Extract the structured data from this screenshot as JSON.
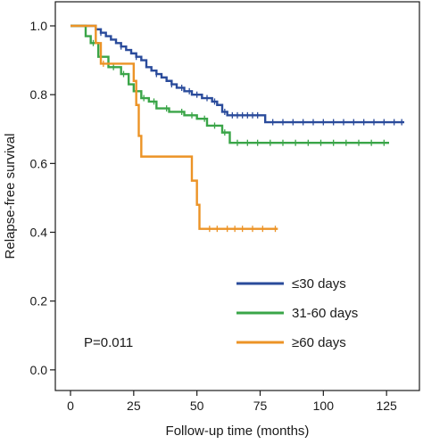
{
  "chart_data": {
    "type": "line",
    "title": "",
    "xlabel": "Follow-up time (months)",
    "ylabel": "Relapse-free survival",
    "xlim": [
      -6,
      138
    ],
    "ylim": [
      -0.06,
      1.07
    ],
    "x_ticks": [
      0,
      25,
      50,
      75,
      100,
      125
    ],
    "x_tick_labels": [
      "0",
      "25",
      "50",
      "75",
      "100",
      "125"
    ],
    "y_ticks": [
      0.0,
      0.2,
      0.4,
      0.6,
      0.8,
      1.0
    ],
    "y_tick_labels": [
      "0.0",
      "0.2",
      "0.4",
      "0.6",
      "0.8",
      "1.0"
    ],
    "grid": false,
    "legend_placement": "bottom-right",
    "annotation": "P=0.011",
    "series": [
      {
        "name": "≤30 days",
        "color": "#2a4b9b",
        "step_points": [
          [
            0,
            1.0
          ],
          [
            8,
            1.0
          ],
          [
            10,
            0.99
          ],
          [
            12,
            0.98
          ],
          [
            14,
            0.97
          ],
          [
            16,
            0.96
          ],
          [
            18,
            0.95
          ],
          [
            20,
            0.94
          ],
          [
            22,
            0.93
          ],
          [
            24,
            0.92
          ],
          [
            26,
            0.91
          ],
          [
            28,
            0.9
          ],
          [
            30,
            0.88
          ],
          [
            32,
            0.87
          ],
          [
            34,
            0.86
          ],
          [
            36,
            0.85
          ],
          [
            38,
            0.84
          ],
          [
            40,
            0.83
          ],
          [
            42,
            0.82
          ],
          [
            45,
            0.81
          ],
          [
            48,
            0.8
          ],
          [
            52,
            0.79
          ],
          [
            56,
            0.78
          ],
          [
            58,
            0.77
          ],
          [
            60,
            0.75
          ],
          [
            62,
            0.74
          ],
          [
            77,
            0.72
          ],
          [
            132,
            0.72
          ]
        ],
        "censor_x": [
          12,
          20,
          26,
          34,
          40,
          44,
          47,
          50,
          54,
          57,
          61,
          64,
          66,
          68,
          70,
          72,
          74,
          80,
          84,
          88,
          92,
          96,
          100,
          104,
          108,
          112,
          116,
          120,
          124,
          128,
          131
        ]
      },
      {
        "name": "31-60 days",
        "color": "#3aa548",
        "step_points": [
          [
            0,
            1.0
          ],
          [
            6,
            0.97
          ],
          [
            8,
            0.95
          ],
          [
            11,
            0.91
          ],
          [
            15,
            0.88
          ],
          [
            20,
            0.86
          ],
          [
            23,
            0.83
          ],
          [
            25,
            0.81
          ],
          [
            28,
            0.79
          ],
          [
            31,
            0.78
          ],
          [
            34,
            0.76
          ],
          [
            39,
            0.75
          ],
          [
            45,
            0.74
          ],
          [
            50,
            0.73
          ],
          [
            54,
            0.71
          ],
          [
            60,
            0.69
          ],
          [
            63,
            0.66
          ],
          [
            126,
            0.66
          ]
        ],
        "censor_x": [
          9,
          17,
          21,
          29,
          33,
          38,
          44,
          48,
          53,
          57,
          61,
          66,
          70,
          74,
          79,
          84,
          89,
          94,
          99,
          104,
          109,
          114,
          119,
          124
        ]
      },
      {
        "name": "≥60 days",
        "color": "#ec9326",
        "step_points": [
          [
            0,
            1.0
          ],
          [
            10,
            0.95
          ],
          [
            12,
            0.89
          ],
          [
            24,
            0.89
          ],
          [
            25,
            0.84
          ],
          [
            26,
            0.77
          ],
          [
            27,
            0.68
          ],
          [
            28,
            0.62
          ],
          [
            47,
            0.62
          ],
          [
            48,
            0.55
          ],
          [
            50,
            0.48
          ],
          [
            51,
            0.41
          ],
          [
            82,
            0.41
          ]
        ],
        "censor_x": [
          13,
          55,
          58,
          62,
          65,
          68,
          72,
          76,
          81
        ]
      }
    ]
  }
}
